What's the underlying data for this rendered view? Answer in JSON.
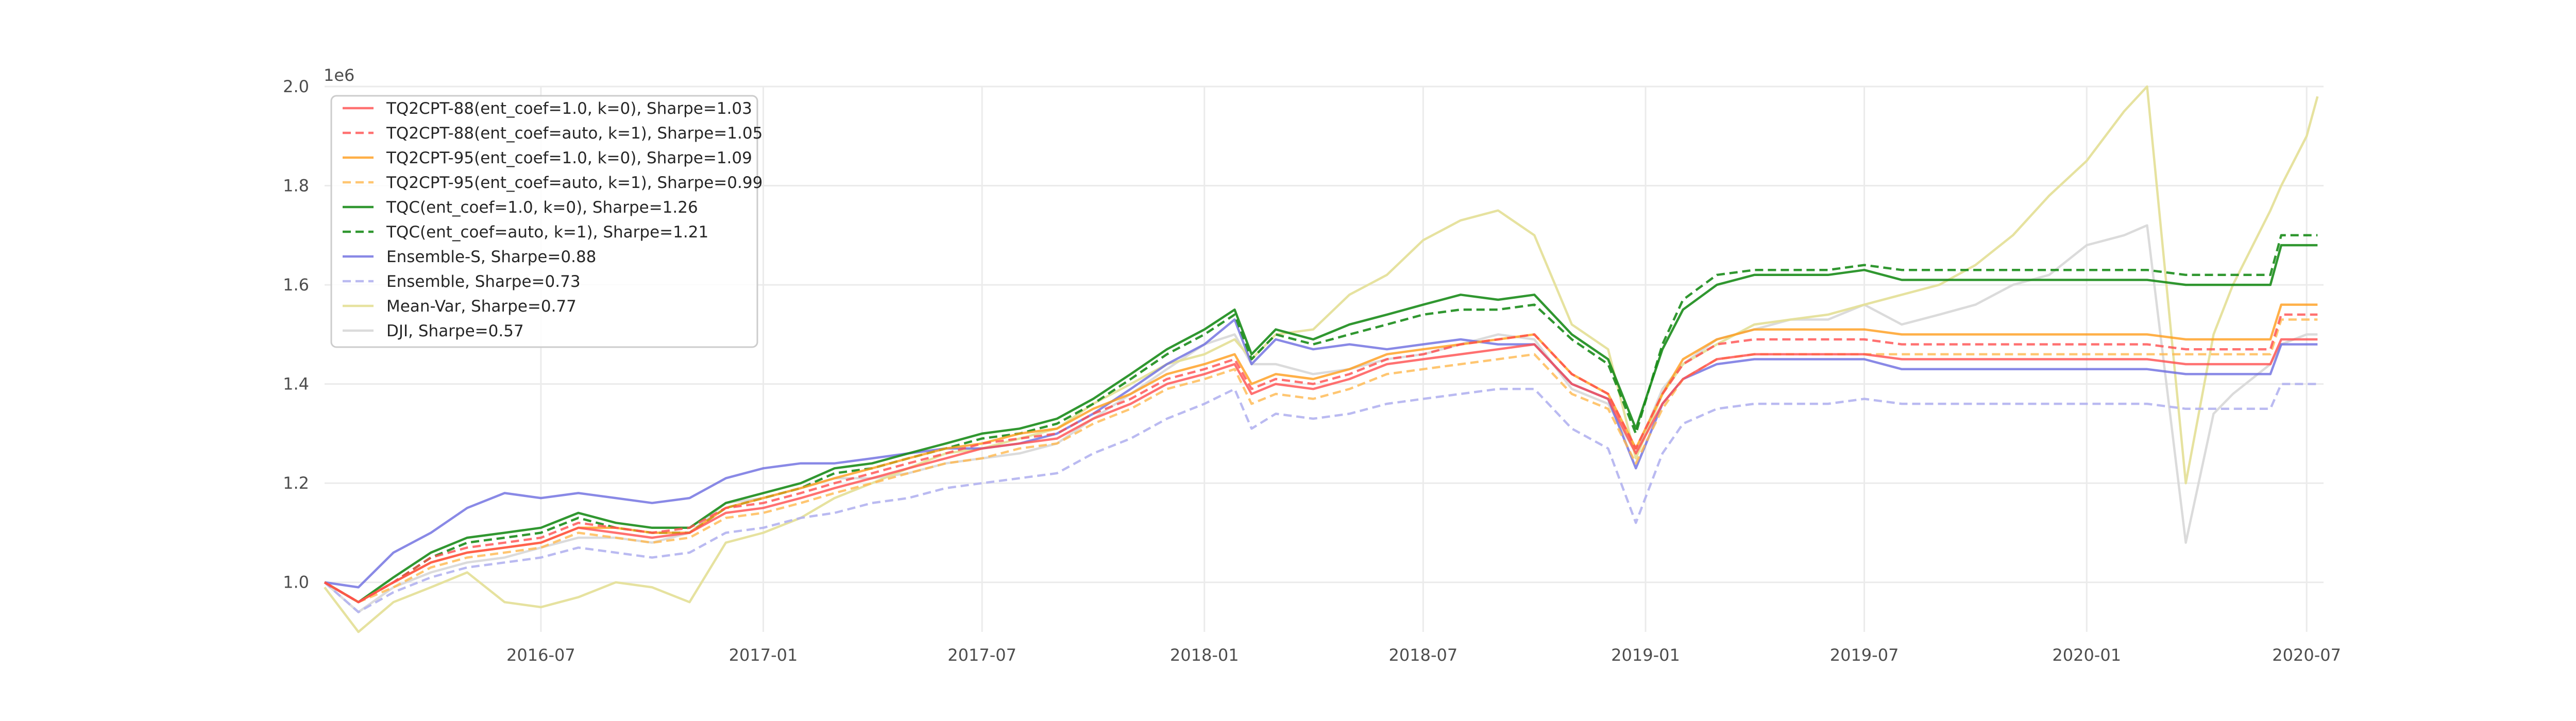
{
  "chart_data": {
    "type": "line",
    "title": "",
    "xlabel": "",
    "ylabel": "",
    "y_scale_label": "1e6",
    "xlim": [
      "2016-01-04",
      "2020-07-15"
    ],
    "ylim": [
      900000,
      2000000
    ],
    "y_ticks": [
      1000000,
      1200000,
      1400000,
      1600000,
      1800000,
      2000000
    ],
    "y_tick_labels": [
      "1.0",
      "1.2",
      "1.4",
      "1.6",
      "1.8",
      "2.0"
    ],
    "x_ticks": [
      "2016-07-01",
      "2017-01-01",
      "2017-07-01",
      "2018-01-01",
      "2018-07-01",
      "2019-01-01",
      "2019-07-01",
      "2020-01-01",
      "2020-07-01"
    ],
    "x_tick_labels": [
      "2016-07",
      "2017-01",
      "2017-07",
      "2018-01",
      "2018-07",
      "2019-01",
      "2019-07",
      "2020-01",
      "2020-07"
    ],
    "grid": true,
    "legend_position": "top-left",
    "x": [
      "2016-01-04",
      "2016-02-01",
      "2016-03-01",
      "2016-04-01",
      "2016-05-01",
      "2016-06-01",
      "2016-07-01",
      "2016-08-01",
      "2016-09-01",
      "2016-10-01",
      "2016-11-01",
      "2016-12-01",
      "2017-01-01",
      "2017-02-01",
      "2017-03-01",
      "2017-04-01",
      "2017-05-01",
      "2017-06-01",
      "2017-07-01",
      "2017-08-01",
      "2017-09-01",
      "2017-10-01",
      "2017-11-01",
      "2017-12-01",
      "2018-01-01",
      "2018-01-26",
      "2018-02-09",
      "2018-03-01",
      "2018-04-01",
      "2018-05-01",
      "2018-06-01",
      "2018-07-01",
      "2018-08-01",
      "2018-09-01",
      "2018-10-01",
      "2018-11-01",
      "2018-12-01",
      "2018-12-24",
      "2019-01-15",
      "2019-02-01",
      "2019-03-01",
      "2019-04-01",
      "2019-05-01",
      "2019-06-01",
      "2019-07-01",
      "2019-08-01",
      "2019-09-01",
      "2019-10-01",
      "2019-11-01",
      "2019-12-01",
      "2020-01-01",
      "2020-02-01",
      "2020-02-20",
      "2020-03-23",
      "2020-04-15",
      "2020-05-01",
      "2020-06-01",
      "2020-06-10",
      "2020-07-01",
      "2020-07-10"
    ],
    "series": [
      {
        "name": "TQ2CPT-88(ent_coef=1.0, k=0), Sharpe=1.03",
        "color": "#ff4d4d",
        "dash": false,
        "opacity": 0.8,
        "values": [
          1000000,
          960000,
          1000000,
          1040000,
          1060000,
          1070000,
          1080000,
          1110000,
          1100000,
          1090000,
          1100000,
          1140000,
          1150000,
          1170000,
          1190000,
          1210000,
          1230000,
          1250000,
          1270000,
          1280000,
          1290000,
          1330000,
          1360000,
          1400000,
          1420000,
          1440000,
          1380000,
          1400000,
          1390000,
          1410000,
          1440000,
          1450000,
          1460000,
          1470000,
          1480000,
          1400000,
          1370000,
          1260000,
          1360000,
          1410000,
          1450000,
          1460000,
          1460000,
          1460000,
          1460000,
          1450000,
          1450000,
          1450000,
          1450000,
          1450000,
          1450000,
          1450000,
          1450000,
          1440000,
          1440000,
          1440000,
          1440000,
          1490000,
          1490000,
          1490000
        ]
      },
      {
        "name": "TQ2CPT-88(ent_coef=auto, k=1), Sharpe=1.05",
        "color": "#ff4d4d",
        "dash": true,
        "opacity": 0.8,
        "values": [
          1000000,
          960000,
          1000000,
          1050000,
          1070000,
          1080000,
          1090000,
          1120000,
          1110000,
          1100000,
          1110000,
          1150000,
          1160000,
          1180000,
          1200000,
          1220000,
          1240000,
          1260000,
          1280000,
          1290000,
          1300000,
          1340000,
          1370000,
          1410000,
          1430000,
          1450000,
          1390000,
          1410000,
          1400000,
          1420000,
          1450000,
          1460000,
          1480000,
          1490000,
          1500000,
          1420000,
          1380000,
          1270000,
          1380000,
          1440000,
          1480000,
          1490000,
          1490000,
          1490000,
          1490000,
          1480000,
          1480000,
          1480000,
          1480000,
          1480000,
          1480000,
          1480000,
          1480000,
          1470000,
          1470000,
          1470000,
          1470000,
          1540000,
          1540000,
          1540000
        ]
      },
      {
        "name": "TQ2CPT-95(ent_coef=1.0, k=0), Sharpe=1.09",
        "color": "#ff9c1a",
        "dash": false,
        "opacity": 0.8,
        "values": [
          1000000,
          960000,
          1000000,
          1040000,
          1060000,
          1070000,
          1080000,
          1110000,
          1110000,
          1100000,
          1100000,
          1150000,
          1170000,
          1190000,
          1210000,
          1230000,
          1250000,
          1270000,
          1280000,
          1300000,
          1310000,
          1350000,
          1380000,
          1420000,
          1440000,
          1460000,
          1400000,
          1420000,
          1410000,
          1430000,
          1460000,
          1470000,
          1480000,
          1490000,
          1500000,
          1420000,
          1380000,
          1270000,
          1380000,
          1450000,
          1490000,
          1510000,
          1510000,
          1510000,
          1510000,
          1500000,
          1500000,
          1500000,
          1500000,
          1500000,
          1500000,
          1500000,
          1500000,
          1490000,
          1490000,
          1490000,
          1490000,
          1560000,
          1560000,
          1560000
        ]
      },
      {
        "name": "TQ2CPT-95(ent_coef=auto, k=1), Sharpe=0.99",
        "color": "#ffb84d",
        "dash": true,
        "opacity": 0.8,
        "values": [
          1000000,
          960000,
          990000,
          1030000,
          1050000,
          1060000,
          1070000,
          1100000,
          1090000,
          1080000,
          1090000,
          1130000,
          1140000,
          1160000,
          1180000,
          1200000,
          1220000,
          1240000,
          1250000,
          1270000,
          1280000,
          1320000,
          1350000,
          1390000,
          1410000,
          1430000,
          1360000,
          1380000,
          1370000,
          1390000,
          1420000,
          1430000,
          1440000,
          1450000,
          1460000,
          1380000,
          1350000,
          1240000,
          1350000,
          1410000,
          1450000,
          1460000,
          1460000,
          1460000,
          1460000,
          1460000,
          1460000,
          1460000,
          1460000,
          1460000,
          1460000,
          1460000,
          1460000,
          1460000,
          1460000,
          1460000,
          1460000,
          1530000,
          1530000,
          1530000
        ]
      },
      {
        "name": "TQC(ent_coef=1.0, k=0), Sharpe=1.26",
        "color": "#1a8c1a",
        "dash": false,
        "opacity": 0.9,
        "values": [
          1000000,
          960000,
          1010000,
          1060000,
          1090000,
          1100000,
          1110000,
          1140000,
          1120000,
          1110000,
          1110000,
          1160000,
          1180000,
          1200000,
          1230000,
          1240000,
          1260000,
          1280000,
          1300000,
          1310000,
          1330000,
          1370000,
          1420000,
          1470000,
          1510000,
          1550000,
          1460000,
          1510000,
          1490000,
          1520000,
          1540000,
          1560000,
          1580000,
          1570000,
          1580000,
          1500000,
          1450000,
          1310000,
          1470000,
          1550000,
          1600000,
          1620000,
          1620000,
          1620000,
          1630000,
          1610000,
          1610000,
          1610000,
          1610000,
          1610000,
          1610000,
          1610000,
          1610000,
          1600000,
          1600000,
          1600000,
          1600000,
          1680000,
          1680000,
          1680000
        ]
      },
      {
        "name": "TQC(ent_coef=auto, k=1), Sharpe=1.21",
        "color": "#1a8c1a",
        "dash": true,
        "opacity": 0.9,
        "values": [
          1000000,
          960000,
          1000000,
          1050000,
          1080000,
          1090000,
          1100000,
          1130000,
          1110000,
          1100000,
          1100000,
          1150000,
          1170000,
          1190000,
          1220000,
          1230000,
          1250000,
          1270000,
          1290000,
          1300000,
          1320000,
          1360000,
          1410000,
          1460000,
          1500000,
          1540000,
          1450000,
          1500000,
          1480000,
          1500000,
          1520000,
          1540000,
          1550000,
          1550000,
          1560000,
          1490000,
          1440000,
          1300000,
          1480000,
          1570000,
          1620000,
          1630000,
          1630000,
          1630000,
          1640000,
          1630000,
          1630000,
          1630000,
          1630000,
          1630000,
          1630000,
          1630000,
          1630000,
          1620000,
          1620000,
          1620000,
          1620000,
          1700000,
          1700000,
          1700000
        ]
      },
      {
        "name": "Ensemble-S, Sharpe=0.88",
        "color": "#6b6be0",
        "dash": false,
        "opacity": 0.8,
        "values": [
          1000000,
          990000,
          1060000,
          1100000,
          1150000,
          1180000,
          1170000,
          1180000,
          1170000,
          1160000,
          1170000,
          1210000,
          1230000,
          1240000,
          1240000,
          1250000,
          1260000,
          1270000,
          1270000,
          1280000,
          1300000,
          1340000,
          1390000,
          1440000,
          1480000,
          1530000,
          1440000,
          1490000,
          1470000,
          1480000,
          1470000,
          1480000,
          1490000,
          1480000,
          1480000,
          1400000,
          1370000,
          1230000,
          1360000,
          1410000,
          1440000,
          1450000,
          1450000,
          1450000,
          1450000,
          1430000,
          1430000,
          1430000,
          1430000,
          1430000,
          1430000,
          1430000,
          1430000,
          1420000,
          1420000,
          1420000,
          1420000,
          1480000,
          1480000,
          1480000
        ]
      },
      {
        "name": "Ensemble, Sharpe=0.73",
        "color": "#b3b3f0",
        "dash": true,
        "opacity": 0.9,
        "values": [
          1000000,
          940000,
          980000,
          1010000,
          1030000,
          1040000,
          1050000,
          1070000,
          1060000,
          1050000,
          1060000,
          1100000,
          1110000,
          1130000,
          1140000,
          1160000,
          1170000,
          1190000,
          1200000,
          1210000,
          1220000,
          1260000,
          1290000,
          1330000,
          1360000,
          1390000,
          1310000,
          1340000,
          1330000,
          1340000,
          1360000,
          1370000,
          1380000,
          1390000,
          1390000,
          1310000,
          1270000,
          1120000,
          1260000,
          1320000,
          1350000,
          1360000,
          1360000,
          1360000,
          1370000,
          1360000,
          1360000,
          1360000,
          1360000,
          1360000,
          1360000,
          1360000,
          1360000,
          1350000,
          1350000,
          1350000,
          1350000,
          1400000,
          1400000,
          1400000
        ]
      },
      {
        "name": "Mean-Var, Sharpe=0.77",
        "color": "#e5e09a",
        "dash": false,
        "opacity": 0.95,
        "values": [
          990000,
          900000,
          960000,
          990000,
          1020000,
          960000,
          950000,
          970000,
          1000000,
          990000,
          960000,
          1080000,
          1100000,
          1130000,
          1170000,
          1200000,
          1230000,
          1260000,
          1270000,
          1290000,
          1310000,
          1360000,
          1400000,
          1440000,
          1460000,
          1490000,
          1450000,
          1500000,
          1510000,
          1580000,
          1620000,
          1690000,
          1730000,
          1750000,
          1700000,
          1520000,
          1470000,
          1250000,
          1380000,
          1440000,
          1480000,
          1520000,
          1530000,
          1540000,
          1560000,
          1580000,
          1600000,
          1640000,
          1700000,
          1780000,
          1850000,
          1950000,
          2000000,
          1200000,
          1500000,
          1600000,
          1750000,
          1800000,
          1900000,
          1980000
        ]
      },
      {
        "name": "DJI, Sharpe=0.57",
        "color": "#d9d9d9",
        "dash": false,
        "opacity": 0.95,
        "values": [
          1000000,
          940000,
          990000,
          1020000,
          1040000,
          1050000,
          1070000,
          1090000,
          1090000,
          1080000,
          1100000,
          1160000,
          1170000,
          1190000,
          1210000,
          1210000,
          1220000,
          1240000,
          1250000,
          1260000,
          1280000,
          1330000,
          1380000,
          1430000,
          1480000,
          1500000,
          1440000,
          1440000,
          1420000,
          1430000,
          1450000,
          1460000,
          1480000,
          1500000,
          1490000,
          1390000,
          1360000,
          1260000,
          1390000,
          1440000,
          1490000,
          1510000,
          1530000,
          1530000,
          1560000,
          1520000,
          1540000,
          1560000,
          1600000,
          1620000,
          1680000,
          1700000,
          1720000,
          1080000,
          1340000,
          1380000,
          1440000,
          1480000,
          1500000,
          1500000
        ]
      }
    ]
  }
}
